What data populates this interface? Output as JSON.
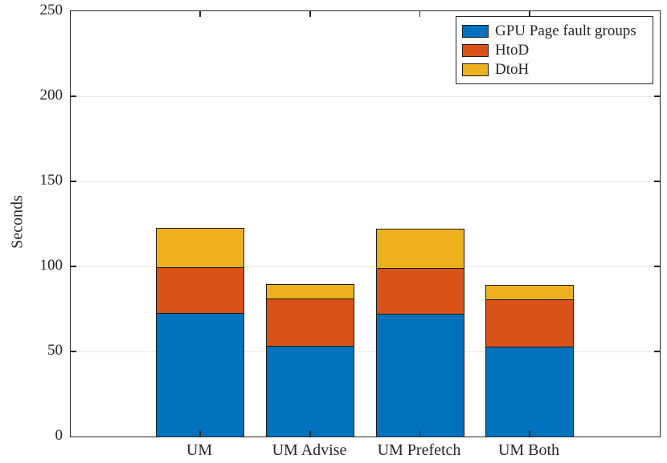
{
  "chart_data": {
    "type": "bar",
    "stacked": true,
    "title": "",
    "xlabel": "",
    "ylabel": "Seconds",
    "categories": [
      "UM",
      "UM Advise",
      "UM Prefetch",
      "UM Both"
    ],
    "series": [
      {
        "name": "GPU Page fault groups",
        "color": "#0072BD",
        "values": [
          72.5,
          53.5,
          72,
          53
        ]
      },
      {
        "name": "HtoD",
        "color": "#D95319",
        "values": [
          27,
          27.5,
          27,
          27.5
        ]
      },
      {
        "name": "DtoH",
        "color": "#EDB120",
        "values": [
          23,
          8.5,
          23,
          8.5
        ]
      }
    ],
    "totals": [
      122.5,
      89.5,
      122,
      89
    ],
    "ylim": [
      0,
      250
    ],
    "yticks": [
      0,
      50,
      100,
      150,
      200,
      250
    ],
    "ytick_labels": [
      "0",
      "50",
      "100",
      "150",
      "200",
      "250"
    ],
    "grid": true,
    "legend_position": "top-right",
    "legend_entries": [
      "GPU Page fault groups",
      "HtoD",
      "DtoH"
    ]
  },
  "colors": {
    "axis": "#262626",
    "grid": "#e6e6e6",
    "background": "#ffffff",
    "bar_edge": "#1a1a1a"
  }
}
